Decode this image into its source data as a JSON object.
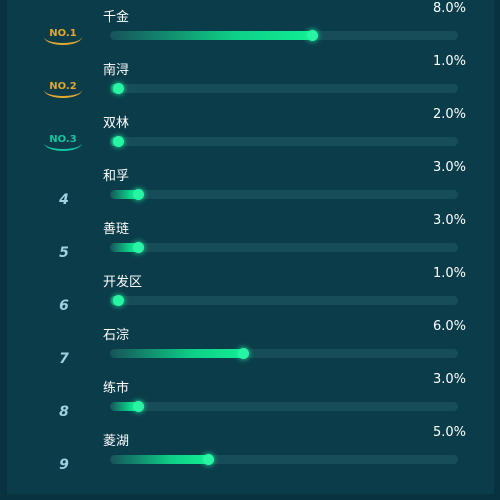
{
  "chart_data": {
    "type": "bar",
    "orientation": "horizontal",
    "categories": [
      "千金",
      "南浔",
      "双林",
      "和孚",
      "善琏",
      "开发区",
      "石淙",
      "练市",
      "菱湖"
    ],
    "values": [
      8.0,
      1.0,
      2.0,
      3.0,
      3.0,
      1.0,
      6.0,
      3.0,
      5.0
    ],
    "value_labels": [
      "8.0%",
      "1.0%",
      "2.0%",
      "3.0%",
      "3.0%",
      "1.0%",
      "6.0%",
      "3.0%",
      "5.0%"
    ],
    "rank_labels": [
      "NO.1",
      "NO.2",
      "NO.3",
      "4",
      "5",
      "6",
      "7",
      "8",
      "9"
    ],
    "xlim": [
      0,
      10
    ],
    "grid": false,
    "title": "",
    "xlabel": "",
    "ylabel": ""
  },
  "colors": {
    "background": "#0b3c4a",
    "track": "#174d58",
    "bar_end": "#12ef96",
    "rank_gold": "#e0a82e",
    "rank_teal": "#14c6a0",
    "rank_number": "#9fd3e2",
    "text": "#ffffff"
  }
}
